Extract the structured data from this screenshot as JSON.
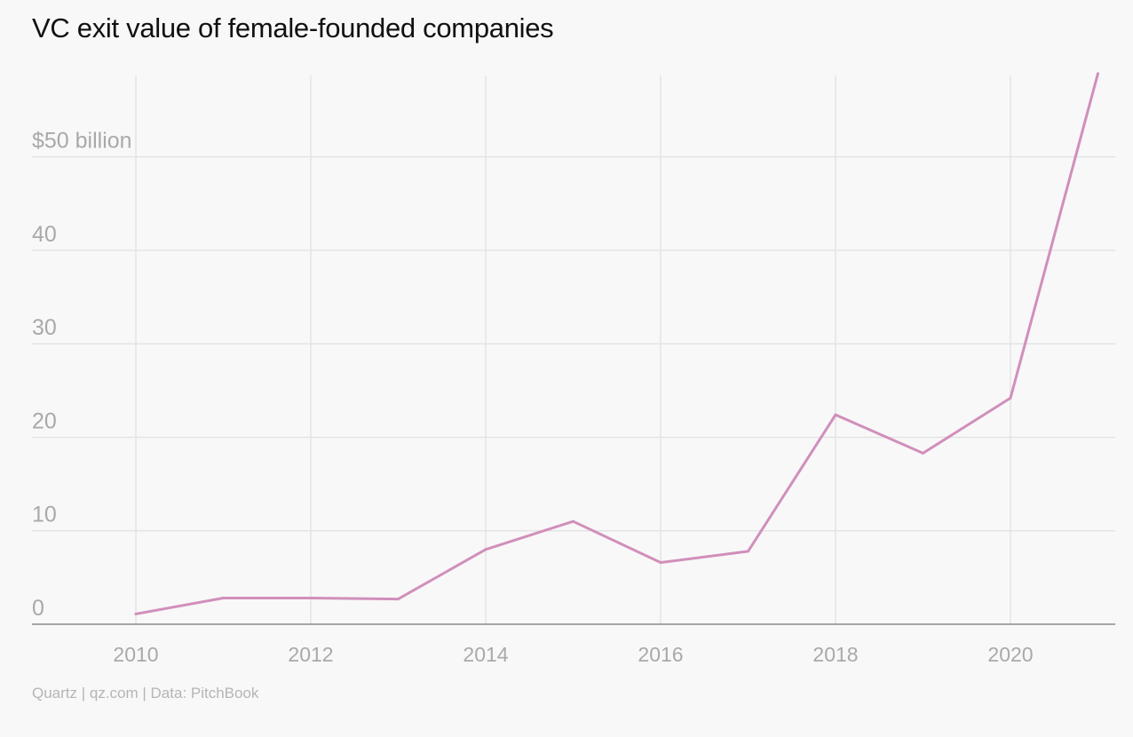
{
  "chart_data": {
    "type": "line",
    "title": "VC exit value of female-founded companies",
    "source": "Quartz | qz.com | Data: PitchBook",
    "xlabel": "",
    "ylabel": "",
    "x": [
      2010,
      2011,
      2012,
      2013,
      2014,
      2015,
      2016,
      2017,
      2018,
      2019,
      2020,
      2021
    ],
    "series": [
      {
        "name": "VC exit value ($ billion)",
        "color": "#d18fbb",
        "values": [
          1.1,
          2.8,
          2.8,
          2.7,
          8.0,
          11.0,
          6.6,
          7.8,
          22.4,
          18.3,
          24.2,
          58.9
        ]
      }
    ],
    "xticks": [
      2010,
      2012,
      2014,
      2016,
      2018,
      2020
    ],
    "xtick_labels": [
      "2010",
      "2012",
      "2014",
      "2016",
      "2018",
      "2020"
    ],
    "yticks": [
      0,
      10,
      20,
      30,
      40,
      50
    ],
    "ytick_labels": [
      "0",
      "10",
      "20",
      "30",
      "40",
      "$50 billion"
    ],
    "xlim": [
      2009.18,
      2021.2
    ],
    "ylim": [
      0,
      58.7
    ],
    "grid": true
  }
}
